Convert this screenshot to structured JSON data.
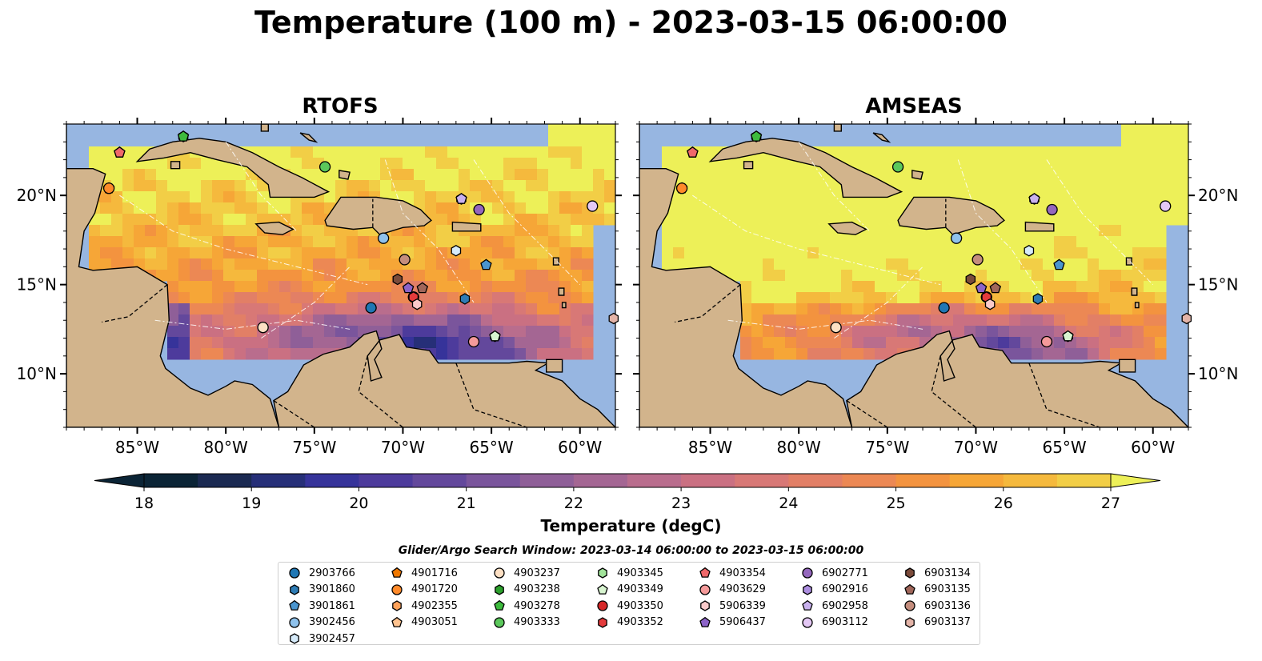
{
  "title": "Temperature (100 m) - 2023-03-15 06:00:00",
  "panels": [
    {
      "title": "RTOFS",
      "id": "rtofs"
    },
    {
      "title": "AMSEAS",
      "id": "amseas"
    }
  ],
  "map": {
    "lon_range": [
      -89,
      -58
    ],
    "lat_range": [
      7,
      24
    ],
    "lon_ticks": [
      {
        "value": -85,
        "label": "85°W"
      },
      {
        "value": -80,
        "label": "80°W"
      },
      {
        "value": -75,
        "label": "75°W"
      },
      {
        "value": -70,
        "label": "70°W"
      },
      {
        "value": -65,
        "label": "65°W"
      },
      {
        "value": -60,
        "label": "60°W"
      }
    ],
    "lat_ticks": [
      {
        "value": 20,
        "label": "20°N"
      },
      {
        "value": 15,
        "label": "15°N"
      },
      {
        "value": 10,
        "label": "10°N"
      }
    ],
    "colors": {
      "land": "#d2b48c",
      "ocean": "#97b6e1",
      "coast": "#000000"
    }
  },
  "colorbar": {
    "label": "Temperature (degC)",
    "min": 18,
    "max": 27,
    "ticks": [
      "18",
      "19",
      "20",
      "21",
      "22",
      "23",
      "24",
      "25",
      "26",
      "27"
    ],
    "colors": [
      "#0b2436",
      "#1b2a52",
      "#262f78",
      "#36339a",
      "#4d3b9c",
      "#63489c",
      "#7a559c",
      "#8f5f98",
      "#a46693",
      "#b96d8d",
      "#ca7082",
      "#d87876",
      "#e27f66",
      "#ec8854",
      "#f3933f",
      "#f6a637",
      "#f5b93d",
      "#f2ce46",
      "#edf058"
    ]
  },
  "legend": {
    "title": "Glider/Argo Search Window: 2023-03-14 06:00:00 to 2023-03-15 06:00:00",
    "items": [
      {
        "id": "2903766",
        "marker": "circle",
        "color": "#1f77b4",
        "lon": -71.8,
        "lat": 13.7
      },
      {
        "id": "3901860",
        "marker": "hexagon",
        "color": "#2e7cb5",
        "lon": -66.5,
        "lat": 14.2
      },
      {
        "id": "3901861",
        "marker": "pentagon",
        "color": "#4a95cf",
        "lon": -65.3,
        "lat": 16.1
      },
      {
        "id": "3902456",
        "marker": "circle",
        "color": "#8fc2ec",
        "lon": -71.1,
        "lat": 17.6
      },
      {
        "id": "3902457",
        "marker": "hexagon",
        "color": "#d6ebfa",
        "lon": -67.0,
        "lat": 16.9
      },
      {
        "id": "4901716",
        "marker": "pentagon",
        "color": "#f07800",
        "lon": -86.6,
        "lat": 20.4
      },
      {
        "id": "4901720",
        "marker": "circle",
        "color": "#ff8a2a",
        "lon": -86.6,
        "lat": 20.4
      },
      {
        "id": "4902355",
        "marker": "hexagon",
        "color": "#ffa25a",
        "lon": -77.9,
        "lat": 12.6
      },
      {
        "id": "4903051",
        "marker": "pentagon",
        "color": "#ffc38f",
        "lon": -86.0,
        "lat": 22.4
      },
      {
        "id": "4903237",
        "marker": "circle",
        "color": "#fde0c4",
        "lon": -77.9,
        "lat": 12.6
      },
      {
        "id": "4903238",
        "marker": "hexagon",
        "color": "#2ca02c",
        "lon": -82.4,
        "lat": 23.3
      },
      {
        "id": "4903278",
        "marker": "pentagon",
        "color": "#3dbb3d",
        "lon": -82.4,
        "lat": 23.3
      },
      {
        "id": "4903333",
        "marker": "circle",
        "color": "#5bc85b",
        "lon": -74.4,
        "lat": 21.6
      },
      {
        "id": "4903345",
        "marker": "hexagon",
        "color": "#a1e39a",
        "lon": -64.8,
        "lat": 12.1
      },
      {
        "id": "4903349",
        "marker": "pentagon",
        "color": "#d8f5d0",
        "lon": -64.8,
        "lat": 12.1
      },
      {
        "id": "4903350",
        "marker": "circle",
        "color": "#d62728",
        "lon": -69.4,
        "lat": 14.3
      },
      {
        "id": "4903352",
        "marker": "hexagon",
        "color": "#e43b3c",
        "lon": -69.4,
        "lat": 14.3
      },
      {
        "id": "4903354",
        "marker": "pentagon",
        "color": "#f0686a",
        "lon": -86.0,
        "lat": 22.4
      },
      {
        "id": "4903629",
        "marker": "circle",
        "color": "#f59a9a",
        "lon": -66.0,
        "lat": 11.8
      },
      {
        "id": "5906339",
        "marker": "hexagon",
        "color": "#fbcaca",
        "lon": -69.2,
        "lat": 13.9
      },
      {
        "id": "5906437",
        "marker": "pentagon",
        "color": "#8c63c8",
        "lon": -69.7,
        "lat": 14.8
      },
      {
        "id": "6902771",
        "marker": "circle",
        "color": "#9467bd",
        "lon": -65.7,
        "lat": 19.2
      },
      {
        "id": "6902916",
        "marker": "hexagon",
        "color": "#ac8de0",
        "lon": -66.7,
        "lat": 19.8
      },
      {
        "id": "6902958",
        "marker": "pentagon",
        "color": "#c9b1ee",
        "lon": -66.7,
        "lat": 19.8
      },
      {
        "id": "6903112",
        "marker": "circle",
        "color": "#e4c8f5",
        "lon": -59.3,
        "lat": 19.4
      },
      {
        "id": "6903134",
        "marker": "hexagon",
        "color": "#7b4b3a",
        "lon": -70.3,
        "lat": 15.3
      },
      {
        "id": "6903135",
        "marker": "pentagon",
        "color": "#a0665a",
        "lon": -68.9,
        "lat": 14.8
      },
      {
        "id": "6903136",
        "marker": "circle",
        "color": "#c48d7d",
        "lon": -69.9,
        "lat": 16.4
      },
      {
        "id": "6903137",
        "marker": "hexagon",
        "color": "#e4b4a8",
        "lon": -58.1,
        "lat": 13.1
      }
    ]
  }
}
